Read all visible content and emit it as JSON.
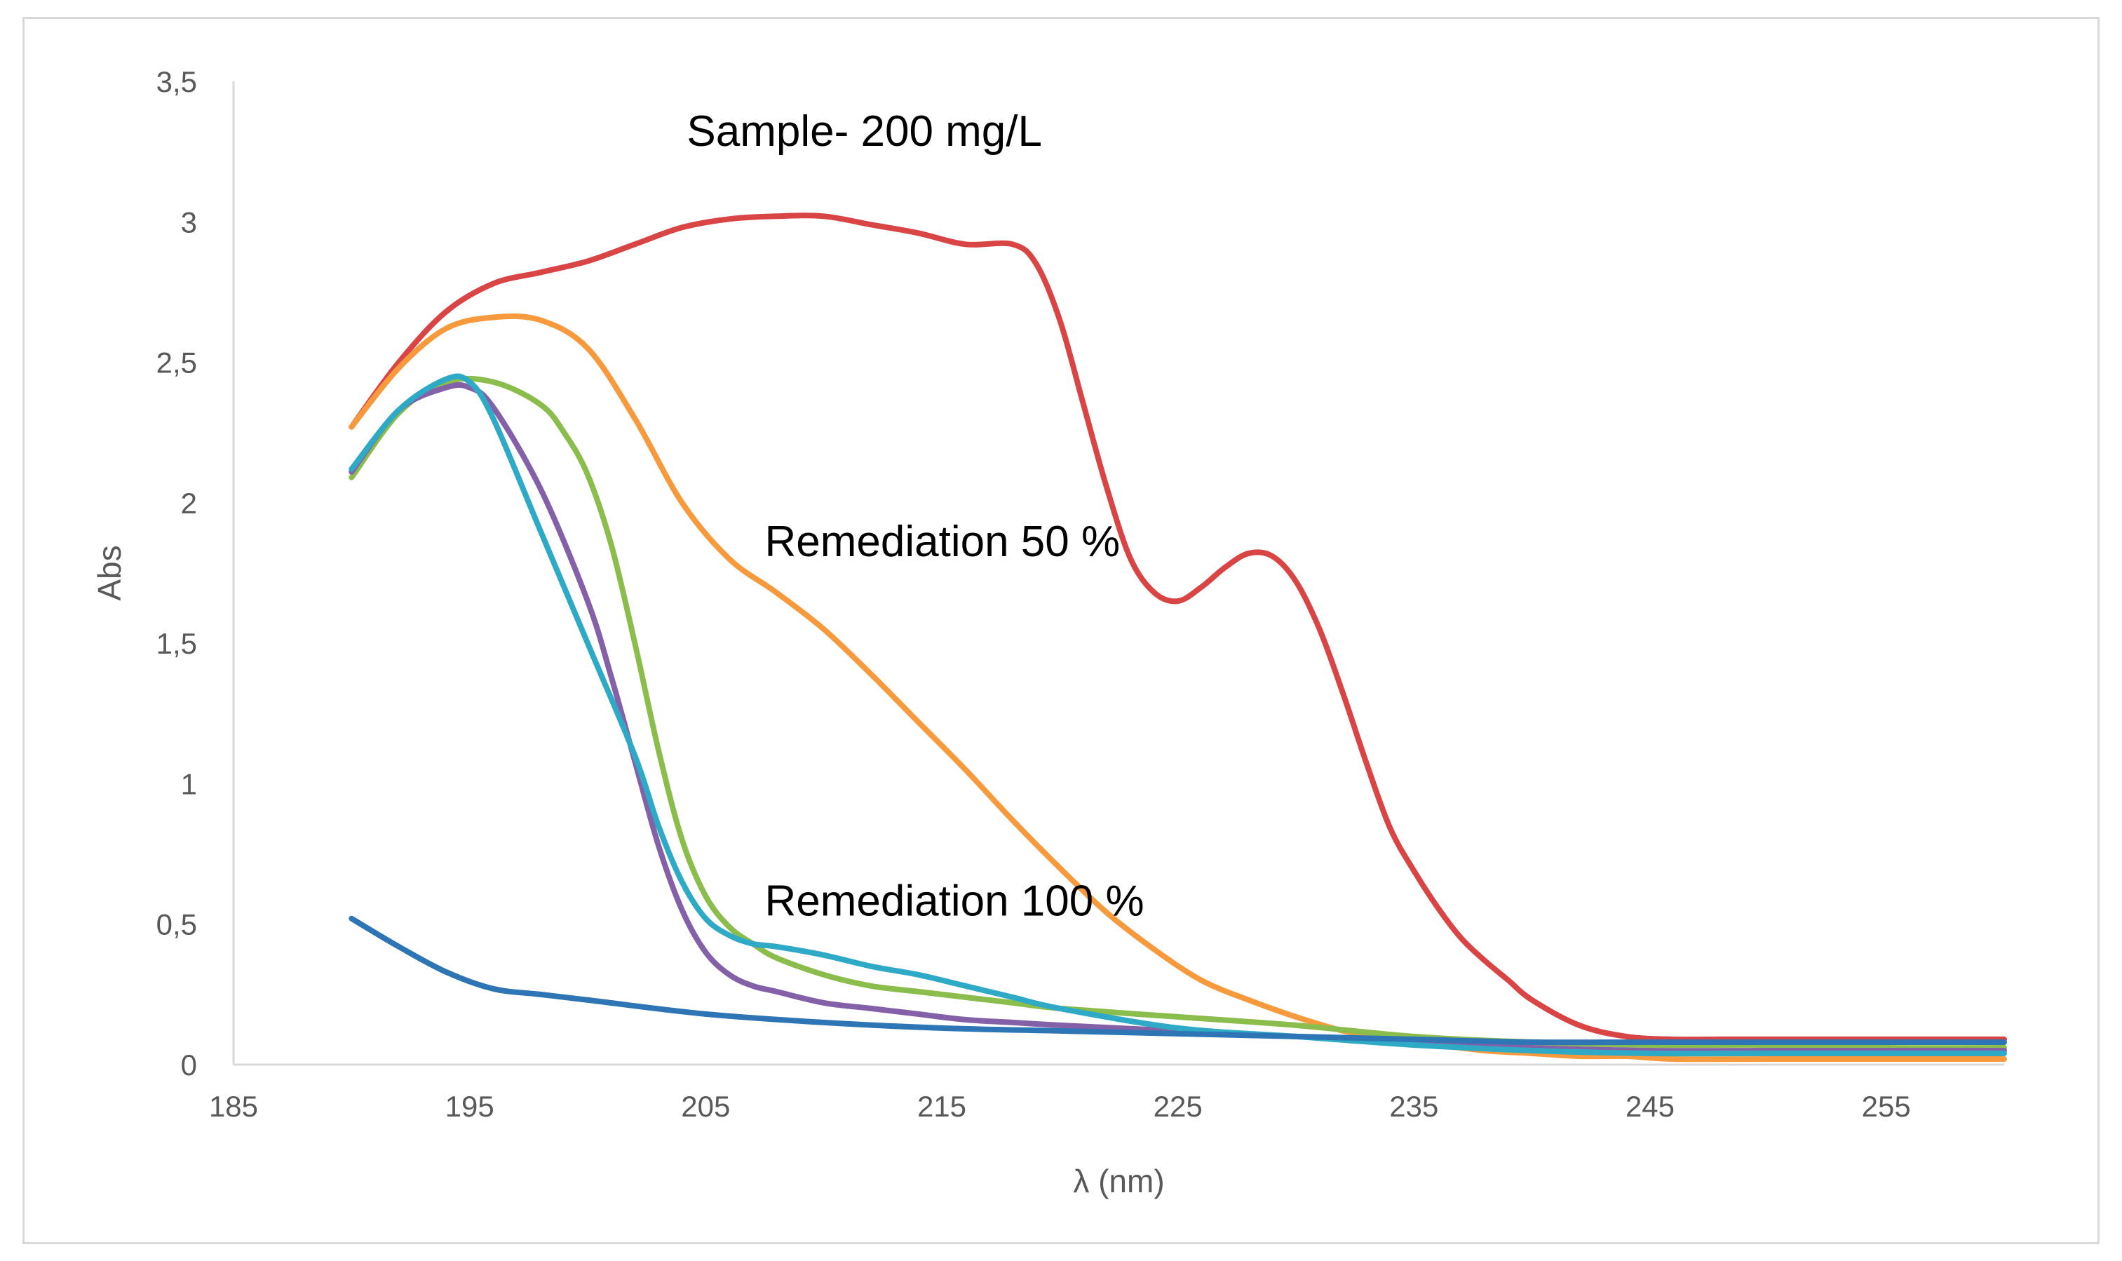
{
  "chart_data": {
    "type": "line",
    "xlabel": "λ (nm)",
    "ylabel": "Abs",
    "xlim": [
      185,
      260
    ],
    "ylim": [
      0,
      3.5
    ],
    "x_ticks": [
      "185",
      "195",
      "205",
      "215",
      "225",
      "235",
      "245",
      "255"
    ],
    "y_ticks": [
      "0",
      "0,5",
      "1",
      "1,5",
      "2",
      "2,5",
      "3",
      "3,5"
    ],
    "grid": false,
    "legend": "none",
    "annotations": [
      {
        "text": "Sample- 200 mg/L",
        "x": 204.2,
        "y": 3.27
      },
      {
        "text": "Remediation  50 %",
        "x": 207.5,
        "y": 1.81
      },
      {
        "text": "Remediation 100 %",
        "x": 207.5,
        "y": 0.53
      }
    ],
    "series": [
      {
        "color": "#d94545",
        "x": [
          190,
          192,
          194,
          196,
          198,
          200,
          202,
          204,
          206,
          208,
          210,
          212,
          214,
          216,
          218,
          219,
          220,
          221,
          222,
          223,
          224,
          225,
          226,
          227,
          228,
          229,
          230,
          231,
          232,
          233,
          234,
          235,
          236,
          237,
          238,
          239,
          240,
          242,
          244,
          246,
          248,
          250,
          255,
          260
        ],
        "y": [
          2.27,
          2.5,
          2.68,
          2.78,
          2.82,
          2.86,
          2.92,
          2.98,
          3.01,
          3.02,
          3.02,
          2.99,
          2.96,
          2.92,
          2.92,
          2.85,
          2.65,
          2.35,
          2.05,
          1.8,
          1.68,
          1.65,
          1.7,
          1.77,
          1.82,
          1.81,
          1.72,
          1.55,
          1.32,
          1.07,
          0.84,
          0.69,
          0.56,
          0.45,
          0.37,
          0.3,
          0.23,
          0.14,
          0.1,
          0.09,
          0.09,
          0.09,
          0.09,
          0.09
        ]
      },
      {
        "color": "#f79a3d",
        "x": [
          190,
          192,
          194,
          196,
          198,
          200,
          202,
          204,
          206,
          208,
          210,
          212,
          214,
          216,
          218,
          220,
          222,
          224,
          226,
          228,
          230,
          232,
          234,
          236,
          238,
          240,
          242,
          244,
          246,
          250,
          255,
          260
        ],
        "y": [
          2.27,
          2.48,
          2.62,
          2.66,
          2.65,
          2.55,
          2.3,
          2.0,
          1.8,
          1.68,
          1.55,
          1.39,
          1.22,
          1.05,
          0.87,
          0.7,
          0.54,
          0.41,
          0.3,
          0.23,
          0.17,
          0.12,
          0.09,
          0.07,
          0.05,
          0.04,
          0.03,
          0.03,
          0.02,
          0.02,
          0.02,
          0.02
        ]
      },
      {
        "color": "#8bbd4c",
        "x": [
          190,
          192,
          194,
          196,
          198,
          199,
          200,
          201,
          202,
          203,
          204,
          205,
          206,
          207,
          208,
          210,
          212,
          214,
          216,
          218,
          220,
          225,
          230,
          235,
          240,
          245,
          250,
          255,
          260
        ],
        "y": [
          2.09,
          2.32,
          2.43,
          2.43,
          2.35,
          2.25,
          2.1,
          1.85,
          1.5,
          1.12,
          0.8,
          0.6,
          0.49,
          0.43,
          0.38,
          0.32,
          0.28,
          0.26,
          0.24,
          0.22,
          0.2,
          0.17,
          0.14,
          0.1,
          0.08,
          0.07,
          0.07,
          0.06,
          0.06
        ]
      },
      {
        "color": "#8460a8",
        "x": [
          190,
          192,
          194,
          195,
          196,
          198,
          200,
          201,
          202,
          203,
          204,
          205,
          206,
          207,
          208,
          210,
          212,
          214,
          216,
          218,
          220,
          225,
          230,
          235,
          240,
          245,
          250,
          255,
          260
        ],
        "y": [
          2.11,
          2.33,
          2.41,
          2.41,
          2.34,
          2.05,
          1.65,
          1.38,
          1.08,
          0.78,
          0.55,
          0.4,
          0.32,
          0.28,
          0.26,
          0.22,
          0.2,
          0.18,
          0.16,
          0.15,
          0.14,
          0.12,
          0.1,
          0.08,
          0.06,
          0.05,
          0.05,
          0.05,
          0.05
        ]
      },
      {
        "color": "#2eaac6",
        "x": [
          190,
          192,
          194,
          195,
          196,
          198,
          200,
          202,
          203,
          204,
          205,
          206,
          207,
          208,
          210,
          212,
          214,
          216,
          218,
          220,
          225,
          230,
          235,
          240,
          245,
          250,
          255,
          260
        ],
        "y": [
          2.12,
          2.33,
          2.44,
          2.43,
          2.3,
          1.9,
          1.5,
          1.1,
          0.85,
          0.65,
          0.52,
          0.46,
          0.43,
          0.42,
          0.39,
          0.35,
          0.32,
          0.28,
          0.24,
          0.2,
          0.13,
          0.1,
          0.07,
          0.05,
          0.04,
          0.04,
          0.04,
          0.04
        ]
      },
      {
        "color": "#2e75b6",
        "x": [
          190,
          192,
          194,
          196,
          198,
          200,
          205,
          210,
          215,
          220,
          225,
          230,
          235,
          240,
          245,
          250,
          255,
          260
        ],
        "y": [
          0.52,
          0.42,
          0.33,
          0.27,
          0.25,
          0.23,
          0.18,
          0.15,
          0.13,
          0.12,
          0.11,
          0.1,
          0.09,
          0.08,
          0.08,
          0.08,
          0.08,
          0.08
        ]
      }
    ]
  }
}
